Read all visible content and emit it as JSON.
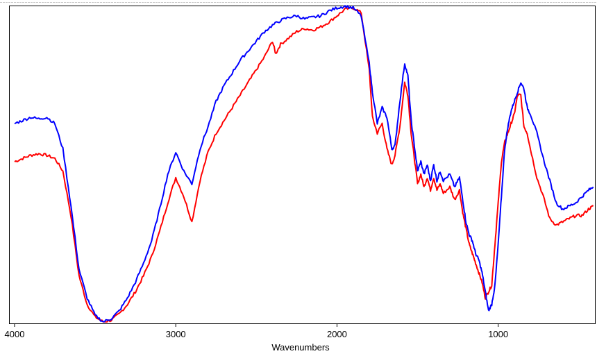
{
  "chart_data": {
    "type": "line",
    "title": "",
    "xlabel": "Wavenumbers",
    "ylabel": "",
    "xlim": [
      4030,
      400
    ],
    "ylim": [
      0,
      100
    ],
    "x_reversed": true,
    "grid": false,
    "legend": "none",
    "xticks": [
      4000,
      3000,
      2000,
      1000
    ],
    "series": [
      {
        "color": "#0000ff",
        "x": [
          4000,
          3950,
          3900,
          3850,
          3800,
          3750,
          3700,
          3650,
          3600,
          3550,
          3500,
          3450,
          3400,
          3350,
          3300,
          3250,
          3200,
          3150,
          3100,
          3050,
          3000,
          2950,
          2900,
          2850,
          2800,
          2750,
          2700,
          2650,
          2600,
          2550,
          2500,
          2450,
          2400,
          2350,
          2300,
          2250,
          2200,
          2150,
          2100,
          2050,
          2000,
          1950,
          1900,
          1850,
          1800,
          1780,
          1750,
          1720,
          1690,
          1660,
          1640,
          1610,
          1580,
          1560,
          1540,
          1520,
          1500,
          1480,
          1460,
          1440,
          1420,
          1400,
          1380,
          1360,
          1340,
          1300,
          1270,
          1240,
          1220,
          1200,
          1180,
          1160,
          1140,
          1120,
          1100,
          1080,
          1060,
          1040,
          1020,
          1000,
          980,
          960,
          940,
          920,
          900,
          880,
          860,
          840,
          820,
          800,
          760,
          720,
          680,
          640,
          600,
          560,
          520,
          480,
          440,
          410
        ],
        "y": [
          63,
          64,
          65,
          64.5,
          65,
          63,
          55,
          37,
          17,
          8,
          2.5,
          0.5,
          1.5,
          4,
          8,
          13,
          19,
          26,
          36,
          47,
          54,
          48,
          44,
          55,
          62,
          70,
          75,
          79,
          83,
          86,
          89,
          92,
          94,
          95.5,
          96.5,
          97,
          96,
          96.5,
          97,
          98.5,
          99.5,
          100,
          99.5,
          97,
          82,
          73,
          63,
          68,
          65,
          55,
          56,
          70,
          82,
          78,
          64,
          56,
          48,
          51,
          47,
          50,
          45,
          50,
          45,
          48,
          45,
          47,
          43,
          46,
          39,
          32,
          28,
          26,
          22,
          20,
          16,
          10,
          4,
          6,
          12,
          25,
          40,
          55,
          62,
          67,
          70,
          73,
          76,
          74,
          68,
          66,
          60,
          52,
          45,
          38,
          36,
          37,
          38,
          40,
          42,
          43
        ]
      },
      {
        "color": "#ff0000",
        "x": [
          4000,
          3950,
          3900,
          3850,
          3800,
          3750,
          3700,
          3650,
          3600,
          3550,
          3500,
          3450,
          3400,
          3350,
          3300,
          3250,
          3200,
          3150,
          3100,
          3050,
          3000,
          2950,
          2900,
          2850,
          2800,
          2750,
          2700,
          2650,
          2600,
          2550,
          2500,
          2450,
          2400,
          2380,
          2350,
          2300,
          2250,
          2200,
          2150,
          2100,
          2050,
          2000,
          1950,
          1900,
          1850,
          1800,
          1780,
          1750,
          1720,
          1690,
          1660,
          1640,
          1610,
          1580,
          1560,
          1540,
          1520,
          1500,
          1480,
          1460,
          1440,
          1420,
          1400,
          1380,
          1360,
          1340,
          1300,
          1270,
          1240,
          1220,
          1200,
          1180,
          1160,
          1140,
          1120,
          1100,
          1080,
          1060,
          1040,
          1020,
          1000,
          980,
          960,
          940,
          920,
          900,
          880,
          860,
          840,
          820,
          800,
          760,
          720,
          680,
          640,
          600,
          560,
          520,
          480,
          440,
          410
        ],
        "y": [
          51,
          52,
          53,
          53.5,
          53,
          52,
          48,
          34,
          15,
          6,
          2,
          0.5,
          1,
          3,
          6,
          10,
          15,
          21,
          29,
          38,
          46,
          40,
          32,
          45,
          54,
          60,
          64,
          68,
          72,
          76,
          80,
          84,
          89,
          85,
          88,
          90,
          92,
          93,
          92.5,
          93.5,
          95,
          97,
          99,
          99.5,
          98,
          80,
          65,
          60,
          63,
          55,
          50,
          53,
          62,
          76,
          72,
          60,
          52,
          44,
          47,
          43,
          46,
          42,
          46,
          42,
          44,
          41,
          43,
          39,
          42,
          35,
          30,
          25,
          22,
          19,
          16,
          13,
          8,
          10,
          12,
          25,
          38,
          51,
          57,
          60,
          63,
          66,
          72,
          72,
          62,
          60,
          55,
          46,
          40,
          33,
          31,
          32,
          33,
          34,
          34,
          36,
          37
        ]
      }
    ]
  }
}
